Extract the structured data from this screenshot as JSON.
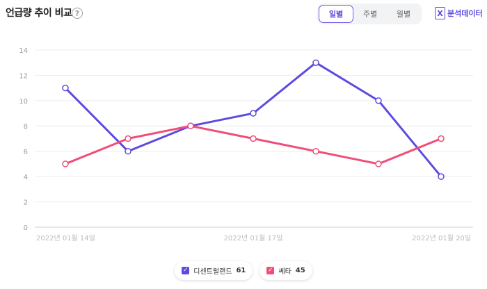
{
  "header": {
    "title": "언급량 추이 비교",
    "help_symbol": "?",
    "tabs": [
      "일별",
      "주별",
      "월별"
    ],
    "active_tab": "일별",
    "export_label": "분석데이터",
    "export_icon_letter": "X"
  },
  "chart_data": {
    "type": "line",
    "y_ticks": [
      "0",
      "2",
      "4",
      "6",
      "8",
      "10",
      "12",
      "14"
    ],
    "ylim": [
      0,
      14
    ],
    "x_tick_labels": [
      "2022년 01월 14일",
      "2022년 01월 17일",
      "2022년 01월 20일"
    ],
    "point_count": 7,
    "grid": true,
    "series": [
      {
        "name": "디센트럴랜드",
        "color": "#5b4be0",
        "values": [
          11,
          6,
          8,
          9,
          13,
          10,
          4
        ]
      },
      {
        "name": "쎄타",
        "color": "#f04d77",
        "values": [
          5,
          7,
          8,
          7,
          6,
          5,
          7
        ]
      }
    ]
  },
  "legend": [
    {
      "label": "디센트럴랜드",
      "count": "61",
      "color": "#5b4be0"
    },
    {
      "label": "쎄타",
      "count": "45",
      "color": "#f04d77"
    }
  ]
}
